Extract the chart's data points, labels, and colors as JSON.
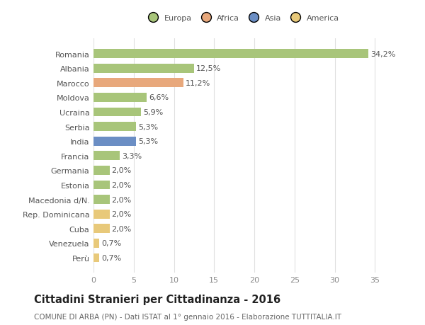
{
  "countries": [
    "Romania",
    "Albania",
    "Marocco",
    "Moldova",
    "Ucraina",
    "Serbia",
    "India",
    "Francia",
    "Germania",
    "Estonia",
    "Macedonia d/N.",
    "Rep. Dominicana",
    "Cuba",
    "Venezuela",
    "Perù"
  ],
  "values": [
    34.2,
    12.5,
    11.2,
    6.6,
    5.9,
    5.3,
    5.3,
    3.3,
    2.0,
    2.0,
    2.0,
    2.0,
    2.0,
    0.7,
    0.7
  ],
  "labels": [
    "34,2%",
    "12,5%",
    "11,2%",
    "6,6%",
    "5,9%",
    "5,3%",
    "5,3%",
    "3,3%",
    "2,0%",
    "2,0%",
    "2,0%",
    "2,0%",
    "2,0%",
    "0,7%",
    "0,7%"
  ],
  "colors": [
    "#a8c57a",
    "#a8c57a",
    "#e8a87c",
    "#a8c57a",
    "#a8c57a",
    "#a8c57a",
    "#6b8ec4",
    "#a8c57a",
    "#a8c57a",
    "#a8c57a",
    "#a8c57a",
    "#e8c97a",
    "#e8c97a",
    "#e8c97a",
    "#e8c97a"
  ],
  "legend_labels": [
    "Europa",
    "Africa",
    "Asia",
    "America"
  ],
  "legend_colors": [
    "#a8c57a",
    "#e8a87c",
    "#6b8ec4",
    "#e8c97a"
  ],
  "title": "Cittadini Stranieri per Cittadinanza - 2016",
  "subtitle": "COMUNE DI ARBA (PN) - Dati ISTAT al 1° gennaio 2016 - Elaborazione TUTTITALIA.IT",
  "xlim": [
    0,
    37
  ],
  "xticks": [
    0,
    5,
    10,
    15,
    20,
    25,
    30,
    35
  ],
  "bg_color": "#ffffff",
  "plot_bg_color": "#ffffff",
  "grid_color": "#e0e0e0",
  "bar_height": 0.62,
  "label_fontsize": 8,
  "tick_fontsize": 8,
  "title_fontsize": 10.5,
  "subtitle_fontsize": 7.5
}
